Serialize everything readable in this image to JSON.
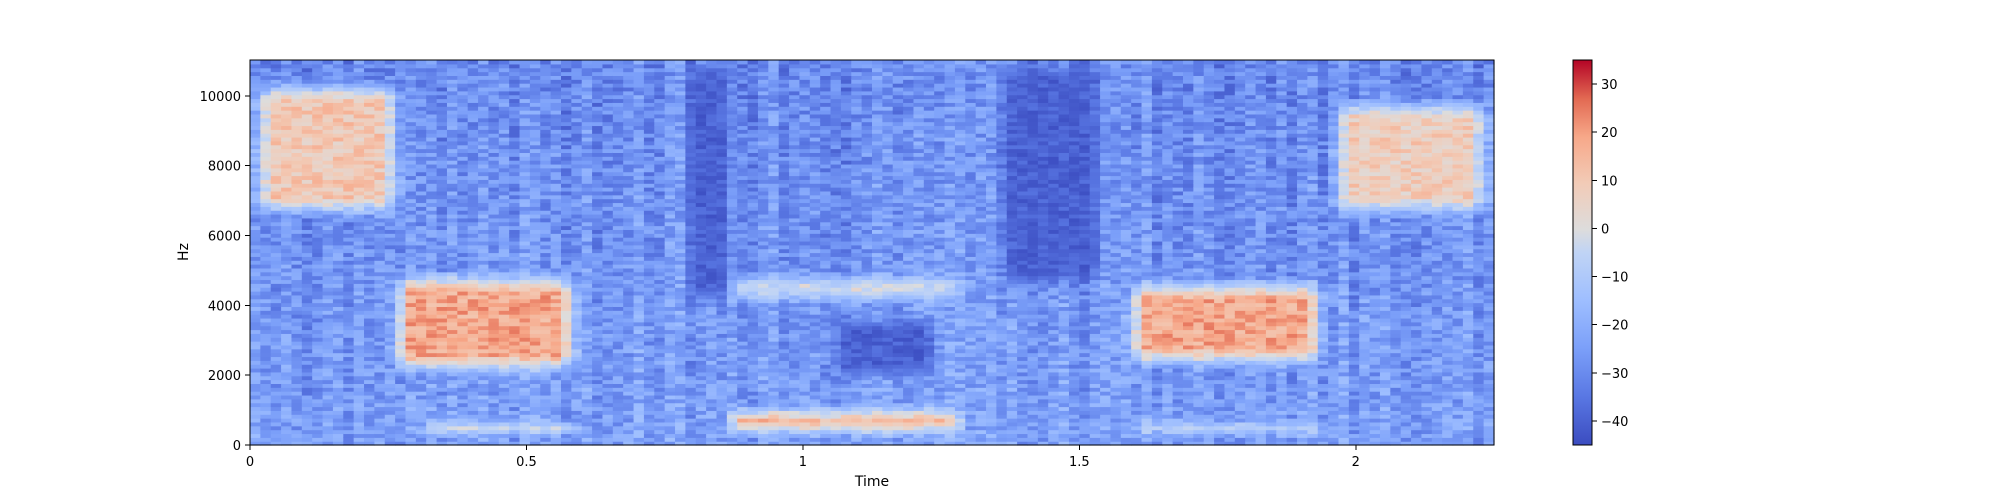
{
  "chart_data": {
    "type": "heatmap",
    "title": "",
    "xlabel": "Time",
    "ylabel": "Hz",
    "xlim": [
      0,
      2.25
    ],
    "ylim": [
      0,
      11025
    ],
    "xticks": [
      0,
      0.5,
      1,
      1.5,
      2
    ],
    "xtick_labels": [
      "0",
      "0.5",
      "1",
      "1.5",
      "2"
    ],
    "yticks": [
      0,
      2000,
      4000,
      6000,
      8000,
      10000
    ],
    "ytick_labels": [
      "0",
      "2000",
      "4000",
      "6000",
      "8000",
      "10000"
    ],
    "colormap": "coolwarm",
    "colorbar": {
      "range": [
        -45,
        35
      ],
      "ticks": [
        -40,
        -30,
        -20,
        -10,
        0,
        10,
        20,
        30
      ],
      "tick_labels": [
        "−40",
        "−30",
        "−20",
        "−10",
        "0",
        "10",
        "20",
        "30"
      ]
    },
    "colors": {
      "low": "#3b4cc0",
      "mid": "#dddcdc",
      "high": "#b40426"
    },
    "energy_regions": [
      {
        "t": [
          0.0,
          0.28
        ],
        "f": [
          6500,
          10500
        ],
        "level_db": 10
      },
      {
        "t": [
          0.25,
          0.6
        ],
        "f": [
          2000,
          5000
        ],
        "level_db": 18
      },
      {
        "t": [
          0.3,
          0.6
        ],
        "f": [
          200,
          800
        ],
        "level_db": 15
      },
      {
        "t": [
          0.85,
          1.3
        ],
        "f": [
          200,
          1200
        ],
        "level_db": 22
      },
      {
        "t": [
          0.85,
          1.3
        ],
        "f": [
          4000,
          5000
        ],
        "level_db": 5
      },
      {
        "t": [
          1.58,
          1.95
        ],
        "f": [
          2200,
          4800
        ],
        "level_db": 18
      },
      {
        "t": [
          1.58,
          1.95
        ],
        "f": [
          200,
          800
        ],
        "level_db": 10
      },
      {
        "t": [
          1.95,
          2.25
        ],
        "f": [
          6500,
          10000
        ],
        "level_db": 8
      }
    ],
    "low_energy_regions": [
      {
        "t": [
          0.78,
          0.88
        ],
        "f": [
          4000,
          11025
        ]
      },
      {
        "t": [
          1.35,
          1.55
        ],
        "f": [
          4500,
          11025
        ]
      },
      {
        "t": [
          1.05,
          1.25
        ],
        "f": [
          1800,
          3800
        ]
      }
    ]
  }
}
